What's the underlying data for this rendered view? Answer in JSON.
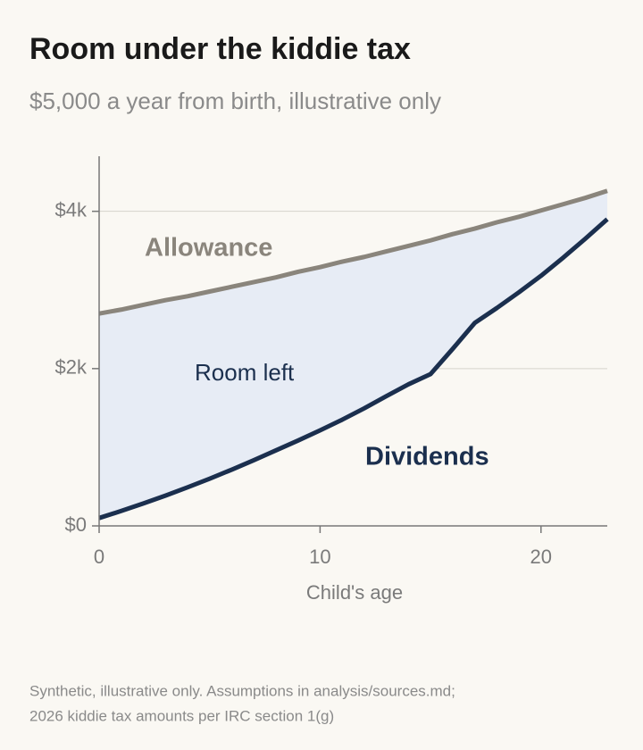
{
  "chart_data": {
    "type": "line",
    "title": "Room under the kiddie tax",
    "subtitle": "$5,000 a year from birth, illustrative only",
    "x_label": "Child's age",
    "x": [
      0,
      1,
      2,
      3,
      4,
      5,
      6,
      7,
      8,
      9,
      10,
      11,
      12,
      13,
      14,
      15,
      16,
      17,
      18,
      19,
      20,
      21,
      22,
      23
    ],
    "series": [
      {
        "name": "Allowance",
        "color": "#8a857c",
        "values": [
          2700,
          2750,
          2810,
          2870,
          2920,
          2980,
          3040,
          3100,
          3160,
          3230,
          3290,
          3360,
          3420,
          3490,
          3560,
          3630,
          3710,
          3780,
          3860,
          3930,
          4010,
          4090,
          4170,
          4260
        ]
      },
      {
        "name": "Dividends",
        "color": "#1b2f4e",
        "values": [
          100,
          190,
          285,
          385,
          490,
          600,
          715,
          835,
          960,
          1085,
          1215,
          1350,
          1495,
          1650,
          1800,
          1930,
          2250,
          2580,
          2770,
          2970,
          3180,
          3410,
          3650,
          3900
        ]
      }
    ],
    "fill_label": "Room left",
    "fill_color": "#e7ecf5",
    "xlim": [
      0,
      23
    ],
    "ylim": [
      0,
      4700
    ],
    "xticks": [
      0,
      10,
      20
    ],
    "yticks": [
      {
        "value": 0,
        "label": "$0"
      },
      {
        "value": 2000,
        "label": "$2k"
      },
      {
        "value": 4000,
        "label": "$4k"
      }
    ],
    "grid": true,
    "notes": [
      "Synthetic, illustrative only. Assumptions in analysis/sources.md;",
      "2026 kiddie tax amounts per IRC section 1(g)"
    ]
  }
}
